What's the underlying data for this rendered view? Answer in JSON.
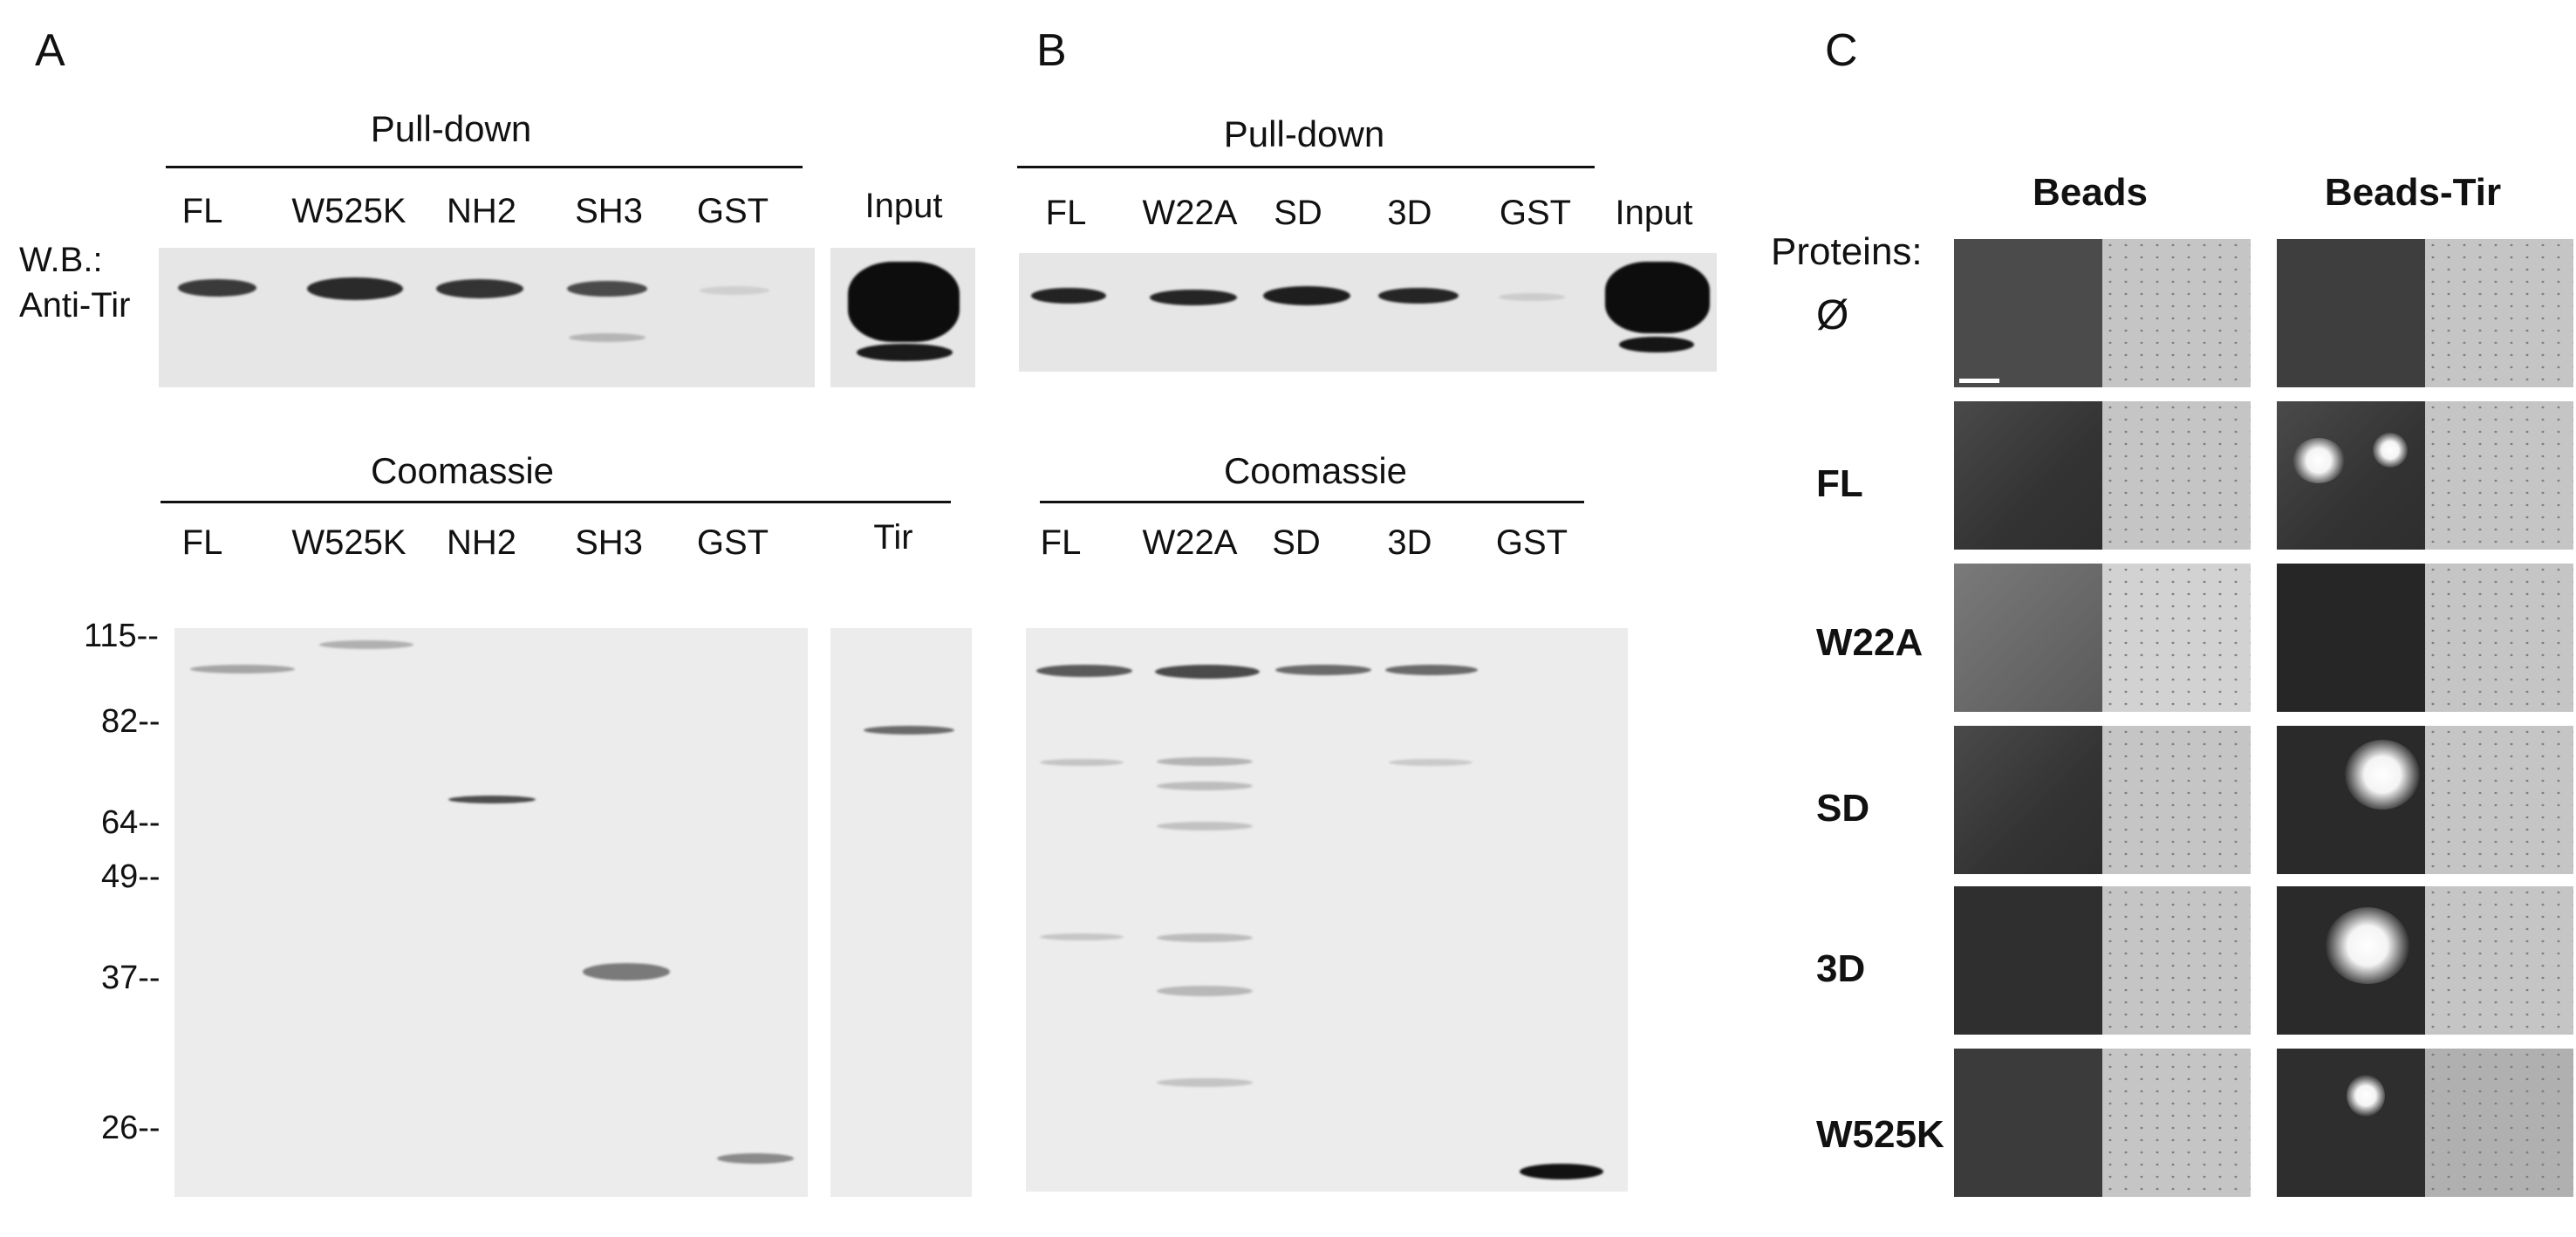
{
  "panel_a": {
    "letter": "A",
    "pulldown_title": "Pull-down",
    "wb_label_1": "W.B.:",
    "wb_label_2": "Anti-Tir",
    "pulldown_lanes": [
      "FL",
      "W525K",
      "NH2",
      "SH3",
      "GST"
    ],
    "input_label": "Input",
    "coomassie_title": "Coomassie",
    "coomassie_lanes": [
      "FL",
      "W525K",
      "NH2",
      "SH3",
      "GST"
    ],
    "tir_label": "Tir",
    "mw_markers": [
      "115--",
      "82--",
      "64--",
      "49--",
      "37--",
      "26--"
    ]
  },
  "panel_b": {
    "letter": "B",
    "pulldown_title": "Pull-down",
    "pulldown_lanes": [
      "FL",
      "W22A",
      "SD",
      "3D",
      "GST"
    ],
    "input_label": "Input",
    "coomassie_title": "Coomassie",
    "coomassie_lanes": [
      "FL",
      "W22A",
      "SD",
      "3D",
      "GST"
    ]
  },
  "panel_c": {
    "letter": "C",
    "col_headers": [
      "Beads",
      "Beads-Tir"
    ],
    "proteins_label": "Proteins:",
    "rows": [
      "Ø",
      "FL",
      "W22A",
      "SD",
      "3D",
      "W525K"
    ]
  }
}
